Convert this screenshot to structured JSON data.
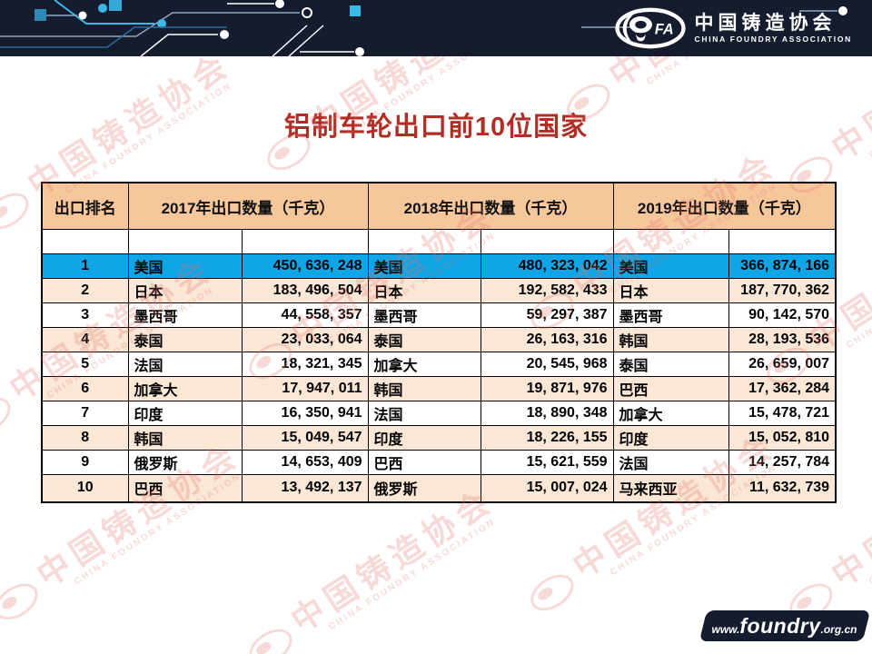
{
  "banner": {
    "logo": {
      "fa_text": "FA",
      "org_cn": "中国铸造协会",
      "org_en": "CHINA FOUNDRY ASSOCIATION"
    }
  },
  "title": "铝制车轮出口前10位国家",
  "watermark": {
    "cn": "中国铸造协会",
    "en": "CHINA FOUNDRY ASSOCIATION"
  },
  "table": {
    "headers": [
      "出口排名",
      "2017年出口数量（千克）",
      "2018年出口数量（千克）",
      "2019年出口数量（千克）"
    ],
    "rows": [
      {
        "rank": "1",
        "c2017": "美国",
        "v2017": "450, 636, 248",
        "c2018": "美国",
        "v2018": "480, 323, 042",
        "c2019": "美国",
        "v2019": "366, 874, 166"
      },
      {
        "rank": "2",
        "c2017": "日本",
        "v2017": "183, 496, 504",
        "c2018": "日本",
        "v2018": "192, 582, 433",
        "c2019": "日本",
        "v2019": "187, 770, 362"
      },
      {
        "rank": "3",
        "c2017": "墨西哥",
        "v2017": "44, 558, 357",
        "c2018": "墨西哥",
        "v2018": "59, 297, 387",
        "c2019": "墨西哥",
        "v2019": "90, 142, 570"
      },
      {
        "rank": "4",
        "c2017": "泰国",
        "v2017": "23, 033, 064",
        "c2018": "泰国",
        "v2018": "26, 163, 316",
        "c2019": "韩国",
        "v2019": "28, 193, 536"
      },
      {
        "rank": "5",
        "c2017": "法国",
        "v2017": "18, 321, 345",
        "c2018": "加拿大",
        "v2018": "20, 545, 968",
        "c2019": "泰国",
        "v2019": "26, 659, 007"
      },
      {
        "rank": "6",
        "c2017": "加拿大",
        "v2017": "17, 947, 011",
        "c2018": "韩国",
        "v2018": "19, 871, 976",
        "c2019": "巴西",
        "v2019": "17, 362, 284"
      },
      {
        "rank": "7",
        "c2017": "印度",
        "v2017": "16, 350, 941",
        "c2018": "法国",
        "v2018": "18, 890, 348",
        "c2019": "加拿大",
        "v2019": "15, 478, 721"
      },
      {
        "rank": "8",
        "c2017": "韩国",
        "v2017": "15, 049, 547",
        "c2018": "印度",
        "v2018": "18, 226, 155",
        "c2019": "印度",
        "v2019": "15, 052, 810"
      },
      {
        "rank": "9",
        "c2017": "俄罗斯",
        "v2017": "14, 653, 409",
        "c2018": "巴西",
        "v2018": "15, 621, 559",
        "c2019": "法国",
        "v2019": "14, 257, 784"
      },
      {
        "rank": "10",
        "c2017": "巴西",
        "v2017": "13, 492, 137",
        "c2018": "俄罗斯",
        "v2018": "15, 007, 024",
        "c2019": "马来西亚",
        "v2019": "11, 632, 739"
      }
    ]
  },
  "footer": {
    "url_prefix": "www.",
    "url_bold": "foundry",
    "url_suffix": ".org.cn"
  },
  "colors": {
    "banner_bg": "#141C2E",
    "title": "#B22E24",
    "header_fill": "#F7C79C",
    "highlight_row": "#0FA5E6",
    "alt_row": "#FBE7D6",
    "watermark": "#E2736B",
    "circuit_cyan": "#3BB9E6",
    "circuit_muted": "#8FA6BE"
  }
}
